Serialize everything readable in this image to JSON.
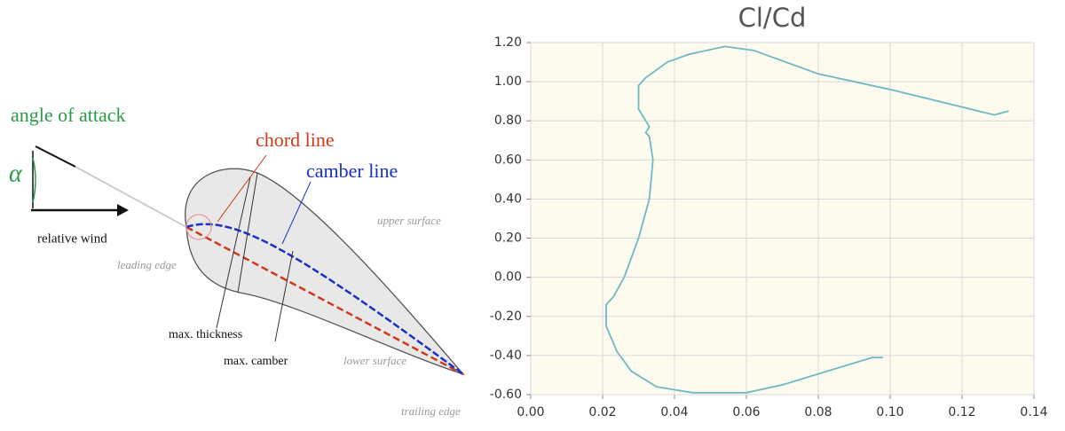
{
  "diagram": {
    "labels": {
      "angle": "angle of attack",
      "alpha": "α",
      "wind": "relative wind",
      "chord": "chord line",
      "camber": "camber line",
      "upper": "upper surface",
      "leading": "leading edge",
      "thickness": "max. thickness",
      "maxcamber": "max. camber",
      "lower": "lower surface",
      "trailing": "trailing edge"
    }
  },
  "chart_data": {
    "type": "line",
    "title": "Cl/Cd",
    "xlim": [
      0,
      0.14
    ],
    "xticks": [
      {
        "value": 0,
        "label": "0.00"
      },
      {
        "value": 0.02,
        "label": "0.02"
      },
      {
        "value": 0.04,
        "label": "0.04"
      },
      {
        "value": 0.06,
        "label": "0.06"
      },
      {
        "value": 0.08,
        "label": "0.08"
      },
      {
        "value": 0.1,
        "label": "0.10"
      },
      {
        "value": 0.12,
        "label": "0.12"
      },
      {
        "value": 0.14,
        "label": "0.14"
      }
    ],
    "ylim": [
      -0.6,
      1.2
    ],
    "yticks": [
      {
        "value": -0.6,
        "label": "-0.60"
      },
      {
        "value": -0.4,
        "label": "-0.40"
      },
      {
        "value": -0.2,
        "label": "-0.20"
      },
      {
        "value": 0,
        "label": "0.00"
      },
      {
        "value": 0.2,
        "label": "0.20"
      },
      {
        "value": 0.4,
        "label": "0.40"
      },
      {
        "value": 0.6,
        "label": "0.60"
      },
      {
        "value": 0.8,
        "label": "0.80"
      },
      {
        "value": 1,
        "label": "1.00"
      },
      {
        "value": 1.2,
        "label": "1.20"
      }
    ],
    "grid": true,
    "series": [
      {
        "color": "#6fb8c4",
        "x": [
          0.098,
          0.095,
          0.07,
          0.06,
          0.045,
          0.035,
          0.028,
          0.024,
          0.021,
          0.021,
          0.023,
          0.026,
          0.03,
          0.033,
          0.034,
          0.033,
          0.032,
          0.033,
          0.03,
          0.03,
          0.032,
          0.038,
          0.044,
          0.054,
          0.062,
          0.08,
          0.1,
          0.129,
          0.133
        ],
        "values": [
          -0.41,
          -0.41,
          -0.55,
          -0.59,
          -0.59,
          -0.56,
          -0.48,
          -0.38,
          -0.25,
          -0.14,
          -0.1,
          0.0,
          0.2,
          0.4,
          0.6,
          0.72,
          0.74,
          0.77,
          0.86,
          0.98,
          1.02,
          1.1,
          1.14,
          1.18,
          1.16,
          1.04,
          0.96,
          0.83,
          0.85
        ]
      }
    ]
  }
}
